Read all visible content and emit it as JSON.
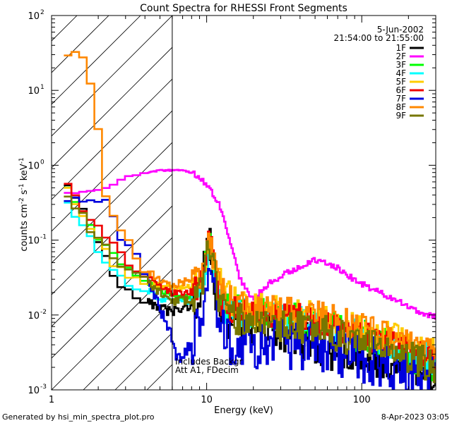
{
  "chart_data": {
    "type": "line",
    "title": "Count Spectra for RHESSI Front Segments",
    "xlabel": "Energy (keV)",
    "ylabel": "counts cm",
    "ylabel_exp1": "-2",
    "ylabel_mid": " s",
    "ylabel_exp2": "-1",
    "ylabel_end": " keV",
    "ylabel_exp3": "-1",
    "x_scale": "log",
    "y_scale": "log",
    "xlim": [
      1,
      300
    ],
    "ylim": [
      0.001,
      100
    ],
    "x_ticks": [
      {
        "value": 1,
        "label": "1"
      },
      {
        "value": 10,
        "label": "10"
      },
      {
        "value": 100,
        "label": "100"
      }
    ],
    "y_ticks": [
      {
        "value": 0.001,
        "base": "10",
        "exp": "-3"
      },
      {
        "value": 0.01,
        "base": "10",
        "exp": "-2"
      },
      {
        "value": 0.1,
        "base": "10",
        "exp": "-1"
      },
      {
        "value": 1,
        "base": "10",
        "exp": "0"
      },
      {
        "value": 10,
        "base": "10",
        "exp": "1"
      },
      {
        "value": 100,
        "base": "10",
        "exp": "2"
      }
    ],
    "date": "5-Jun-2002",
    "time_range": "21:54:00 to 21:55:00",
    "hatch_region_x": [
      1,
      6
    ],
    "annotation_line1": "Includes Backgr",
    "annotation_line2": "Att A1, FDecim",
    "footer_left": "Generated by hsi_min_spectra_plot.pro",
    "footer_right": "8-Apr-2023 03:05",
    "legend_position": "top-right",
    "series": [
      {
        "name": "1F",
        "color": "#000000",
        "low_edge": 0.65,
        "noise": 0.55,
        "points": [
          [
            1.2,
            0.65
          ],
          [
            1.4,
            0.36
          ],
          [
            1.6,
            0.24
          ],
          [
            1.8,
            0.14
          ],
          [
            2.0,
            0.09
          ],
          [
            2.2,
            0.065
          ],
          [
            2.5,
            0.03
          ],
          [
            3.0,
            0.022
          ],
          [
            3.5,
            0.018
          ],
          [
            4.0,
            0.015
          ],
          [
            5.0,
            0.012
          ],
          [
            6.0,
            0.011
          ],
          [
            7.0,
            0.012
          ],
          [
            8.0,
            0.014
          ],
          [
            9.0,
            0.018
          ],
          [
            10.5,
            0.1
          ],
          [
            11.5,
            0.02
          ],
          [
            13.0,
            0.01
          ],
          [
            15.0,
            0.008
          ],
          [
            20.0,
            0.006
          ],
          [
            30.0,
            0.005
          ],
          [
            50.0,
            0.004
          ],
          [
            80.0,
            0.003
          ],
          [
            120.0,
            0.0028
          ],
          [
            180.0,
            0.0022
          ],
          [
            250.0,
            0.0018
          ],
          [
            300.0,
            0.0015
          ]
        ]
      },
      {
        "name": "2F",
        "color": "#ff00ff",
        "low_edge": 0.42,
        "noise": 0.08,
        "points": [
          [
            1.2,
            0.42
          ],
          [
            1.6,
            0.44
          ],
          [
            2.0,
            0.46
          ],
          [
            2.5,
            0.55
          ],
          [
            3.0,
            0.7
          ],
          [
            3.5,
            0.72
          ],
          [
            4.0,
            0.8
          ],
          [
            5.0,
            0.85
          ],
          [
            6.0,
            0.86
          ],
          [
            7.0,
            0.85
          ],
          [
            8.0,
            0.8
          ],
          [
            9.0,
            0.72
          ],
          [
            10.0,
            0.55
          ],
          [
            11.0,
            0.42
          ],
          [
            12.0,
            0.3
          ],
          [
            13.0,
            0.18
          ],
          [
            14.0,
            0.1
          ],
          [
            15.0,
            0.065
          ],
          [
            16.0,
            0.035
          ],
          [
            18.0,
            0.022
          ],
          [
            20.0,
            0.017
          ],
          [
            22.0,
            0.02
          ],
          [
            25.0,
            0.026
          ],
          [
            30.0,
            0.033
          ],
          [
            40.0,
            0.045
          ],
          [
            50.0,
            0.055
          ],
          [
            60.0,
            0.05
          ],
          [
            70.0,
            0.042
          ],
          [
            80.0,
            0.034
          ],
          [
            100.0,
            0.026
          ],
          [
            130.0,
            0.02
          ],
          [
            180.0,
            0.015
          ],
          [
            230.0,
            0.011
          ],
          [
            300.0,
            0.0095
          ]
        ]
      },
      {
        "name": "3F",
        "color": "#00ff00",
        "low_edge": 0.58,
        "noise": 0.45,
        "points": [
          [
            1.2,
            0.58
          ],
          [
            1.4,
            0.33
          ],
          [
            1.6,
            0.23
          ],
          [
            1.8,
            0.15
          ],
          [
            2.0,
            0.11
          ],
          [
            2.5,
            0.06
          ],
          [
            3.0,
            0.04
          ],
          [
            4.0,
            0.03
          ],
          [
            5.0,
            0.022
          ],
          [
            6.0,
            0.018
          ],
          [
            8.0,
            0.018
          ],
          [
            9.0,
            0.02
          ],
          [
            10.5,
            0.11
          ],
          [
            11.5,
            0.03
          ],
          [
            13.0,
            0.012
          ],
          [
            20.0,
            0.01
          ],
          [
            40.0,
            0.009
          ],
          [
            80.0,
            0.006
          ],
          [
            150.0,
            0.004
          ],
          [
            300.0,
            0.002
          ]
        ]
      },
      {
        "name": "4F",
        "color": "#00ffff",
        "low_edge": 0.33,
        "noise": 0.4,
        "points": [
          [
            1.2,
            0.33
          ],
          [
            1.4,
            0.24
          ],
          [
            1.6,
            0.16
          ],
          [
            1.8,
            0.11
          ],
          [
            2.0,
            0.07
          ],
          [
            2.5,
            0.04
          ],
          [
            3.0,
            0.028
          ],
          [
            4.0,
            0.022
          ],
          [
            5.0,
            0.017
          ],
          [
            6.0,
            0.015
          ],
          [
            8.0,
            0.016
          ],
          [
            9.0,
            0.018
          ],
          [
            10.5,
            0.08
          ],
          [
            11.5,
            0.025
          ],
          [
            13.0,
            0.012
          ],
          [
            20.0,
            0.01
          ],
          [
            40.0,
            0.009
          ],
          [
            80.0,
            0.006
          ],
          [
            150.0,
            0.004
          ],
          [
            300.0,
            0.0025
          ]
        ]
      },
      {
        "name": "5F",
        "color": "#ffcc00",
        "low_edge": 0.55,
        "noise": 0.45,
        "points": [
          [
            1.2,
            0.55
          ],
          [
            1.4,
            0.32
          ],
          [
            1.6,
            0.22
          ],
          [
            1.8,
            0.14
          ],
          [
            2.0,
            0.1
          ],
          [
            2.5,
            0.05
          ],
          [
            3.0,
            0.035
          ],
          [
            4.0,
            0.028
          ],
          [
            5.0,
            0.025
          ],
          [
            6.0,
            0.022
          ],
          [
            8.0,
            0.025
          ],
          [
            9.0,
            0.03
          ],
          [
            10.5,
            0.1
          ],
          [
            11.5,
            0.04
          ],
          [
            13.0,
            0.018
          ],
          [
            20.0,
            0.012
          ],
          [
            40.0,
            0.01
          ],
          [
            80.0,
            0.007
          ],
          [
            150.0,
            0.005
          ],
          [
            300.0,
            0.003
          ]
        ]
      },
      {
        "name": "6F",
        "color": "#ee0000",
        "low_edge": 0.6,
        "noise": 0.4,
        "points": [
          [
            1.2,
            0.6
          ],
          [
            1.4,
            0.38
          ],
          [
            1.6,
            0.26
          ],
          [
            1.8,
            0.19
          ],
          [
            2.0,
            0.14
          ],
          [
            2.5,
            0.09
          ],
          [
            3.0,
            0.05
          ],
          [
            4.0,
            0.035
          ],
          [
            5.0,
            0.025
          ],
          [
            6.0,
            0.02
          ],
          [
            8.0,
            0.02
          ],
          [
            9.0,
            0.025
          ],
          [
            10.5,
            0.11
          ],
          [
            11.5,
            0.03
          ],
          [
            13.0,
            0.012
          ],
          [
            20.0,
            0.01
          ],
          [
            40.0,
            0.009
          ],
          [
            80.0,
            0.006
          ],
          [
            150.0,
            0.004
          ],
          [
            300.0,
            0.0025
          ]
        ]
      },
      {
        "name": "7F",
        "color": "#0000dd",
        "low_edge": 0.4,
        "noise": 0.7,
        "points": [
          [
            1.2,
            0.4
          ],
          [
            1.5,
            0.4
          ],
          [
            1.8,
            0.38
          ],
          [
            2.0,
            0.36
          ],
          [
            2.2,
            0.3
          ],
          [
            2.4,
            0.28
          ],
          [
            2.6,
            0.2
          ],
          [
            2.8,
            0.12
          ],
          [
            3.0,
            0.1
          ],
          [
            3.5,
            0.06
          ],
          [
            4.0,
            0.04
          ],
          [
            4.5,
            0.02
          ],
          [
            5.0,
            0.012
          ],
          [
            6.0,
            0.005
          ],
          [
            6.5,
            0.0025
          ],
          [
            7.0,
            0.003
          ],
          [
            8.0,
            0.004
          ],
          [
            9.0,
            0.008
          ],
          [
            10.5,
            0.06
          ],
          [
            11.5,
            0.015
          ],
          [
            13.0,
            0.005
          ],
          [
            20.0,
            0.004
          ],
          [
            40.0,
            0.004
          ],
          [
            80.0,
            0.003
          ],
          [
            150.0,
            0.002
          ],
          [
            300.0,
            0.0012
          ]
        ]
      },
      {
        "name": "8F",
        "color": "#ff8800",
        "low_edge": 32,
        "noise": 0.4,
        "points": [
          [
            1.2,
            32
          ],
          [
            1.4,
            32
          ],
          [
            1.55,
            25
          ],
          [
            1.7,
            25
          ],
          [
            1.8,
            12
          ],
          [
            2.0,
            3.0
          ],
          [
            2.15,
            0.5
          ],
          [
            2.5,
            0.2
          ],
          [
            3.0,
            0.12
          ],
          [
            3.5,
            0.06
          ],
          [
            4.0,
            0.04
          ],
          [
            5.0,
            0.03
          ],
          [
            6.0,
            0.025
          ],
          [
            8.0,
            0.03
          ],
          [
            9.0,
            0.035
          ],
          [
            10.5,
            0.09
          ],
          [
            11.5,
            0.04
          ],
          [
            13.0,
            0.018
          ],
          [
            20.0,
            0.012
          ],
          [
            40.0,
            0.011
          ],
          [
            80.0,
            0.008
          ],
          [
            150.0,
            0.005
          ],
          [
            300.0,
            0.003
          ]
        ]
      },
      {
        "name": "9F",
        "color": "#777700",
        "low_edge": 0.5,
        "noise": 0.45,
        "points": [
          [
            1.2,
            0.5
          ],
          [
            1.4,
            0.3
          ],
          [
            1.6,
            0.21
          ],
          [
            1.8,
            0.14
          ],
          [
            2.0,
            0.1
          ],
          [
            2.5,
            0.06
          ],
          [
            3.0,
            0.04
          ],
          [
            4.0,
            0.028
          ],
          [
            5.0,
            0.02
          ],
          [
            6.0,
            0.015
          ],
          [
            8.0,
            0.016
          ],
          [
            9.0,
            0.02
          ],
          [
            10.5,
            0.09
          ],
          [
            11.5,
            0.025
          ],
          [
            13.0,
            0.01
          ],
          [
            20.0,
            0.008
          ],
          [
            40.0,
            0.007
          ],
          [
            80.0,
            0.005
          ],
          [
            150.0,
            0.0035
          ],
          [
            300.0,
            0.002
          ]
        ]
      }
    ]
  }
}
